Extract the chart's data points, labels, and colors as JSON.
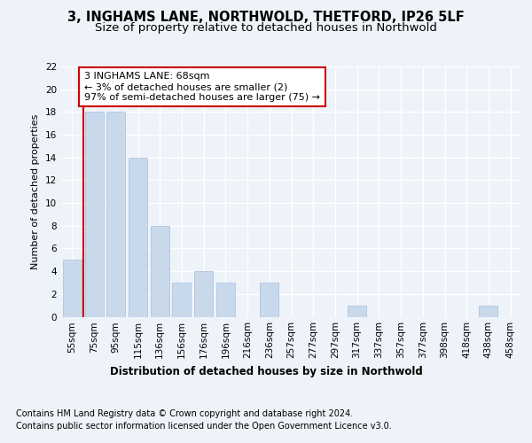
{
  "title1": "3, INGHAMS LANE, NORTHWOLD, THETFORD, IP26 5LF",
  "title2": "Size of property relative to detached houses in Northwold",
  "xlabel": "Distribution of detached houses by size in Northwold",
  "ylabel": "Number of detached properties",
  "categories": [
    "55sqm",
    "75sqm",
    "95sqm",
    "115sqm",
    "136sqm",
    "156sqm",
    "176sqm",
    "196sqm",
    "216sqm",
    "236sqm",
    "257sqm",
    "277sqm",
    "297sqm",
    "317sqm",
    "337sqm",
    "357sqm",
    "377sqm",
    "398sqm",
    "418sqm",
    "438sqm",
    "458sqm"
  ],
  "values": [
    5,
    18,
    18,
    14,
    8,
    3,
    4,
    3,
    0,
    3,
    0,
    0,
    0,
    1,
    0,
    0,
    0,
    0,
    0,
    1,
    0
  ],
  "bar_color": "#c9d9ec",
  "bar_edge_color": "#aec6e0",
  "highlight_line_color": "#cc0000",
  "annotation_box_text": "3 INGHAMS LANE: 68sqm\n← 3% of detached houses are smaller (2)\n97% of semi-detached houses are larger (75) →",
  "annotation_box_color": "#cc0000",
  "ylim": [
    0,
    22
  ],
  "yticks": [
    0,
    2,
    4,
    6,
    8,
    10,
    12,
    14,
    16,
    18,
    20,
    22
  ],
  "footer_line1": "Contains HM Land Registry data © Crown copyright and database right 2024.",
  "footer_line2": "Contains public sector information licensed under the Open Government Licence v3.0.",
  "background_color": "#eef2f9",
  "grid_color": "#ffffff",
  "title_fontsize": 10.5,
  "subtitle_fontsize": 9.5,
  "xlabel_fontsize": 8.5,
  "ylabel_fontsize": 8,
  "tick_fontsize": 7.5,
  "annotation_fontsize": 8,
  "footer_fontsize": 7
}
